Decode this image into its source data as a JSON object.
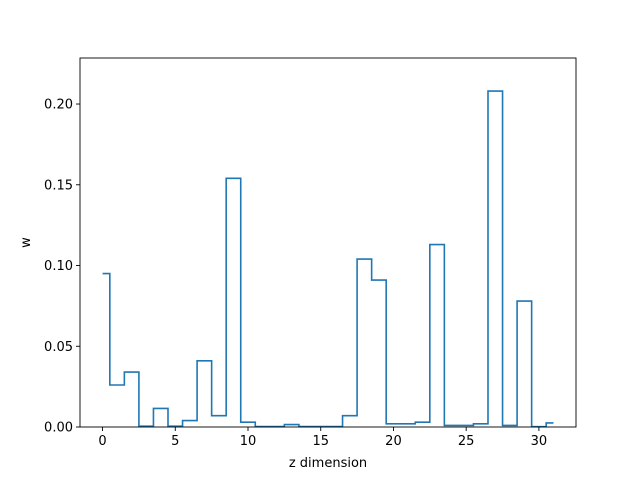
{
  "chart_data": {
    "type": "line",
    "drawstyle": "steps-mid",
    "xlabel": "z dimension",
    "ylabel": "w",
    "xlim": [
      -1.55,
      32.55
    ],
    "ylim": [
      0,
      0.2285
    ],
    "x_ticks": [
      0,
      5,
      10,
      15,
      20,
      25,
      30
    ],
    "y_ticks": [
      0.0,
      0.05,
      0.1,
      0.15,
      0.2
    ],
    "y_tick_labels": [
      "0.00",
      "0.05",
      "0.10",
      "0.15",
      "0.20"
    ],
    "grid": false,
    "color": "#1f77b4",
    "x": [
      0,
      1,
      2,
      3,
      4,
      5,
      6,
      7,
      8,
      9,
      10,
      11,
      12,
      13,
      14,
      15,
      16,
      17,
      18,
      19,
      20,
      21,
      22,
      23,
      24,
      25,
      26,
      27,
      28,
      29,
      30,
      31
    ],
    "values": [
      0.095,
      0.026,
      0.034,
      0.0005,
      0.0115,
      0.0005,
      0.004,
      0.041,
      0.007,
      0.154,
      0.003,
      0.0003,
      0.0003,
      0.0015,
      0.0003,
      0.0003,
      0.0003,
      0.007,
      0.104,
      0.091,
      0.002,
      0.002,
      0.003,
      0.113,
      0.001,
      0.001,
      0.002,
      0.208,
      0.001,
      0.078,
      0.0002,
      0.0025
    ]
  }
}
